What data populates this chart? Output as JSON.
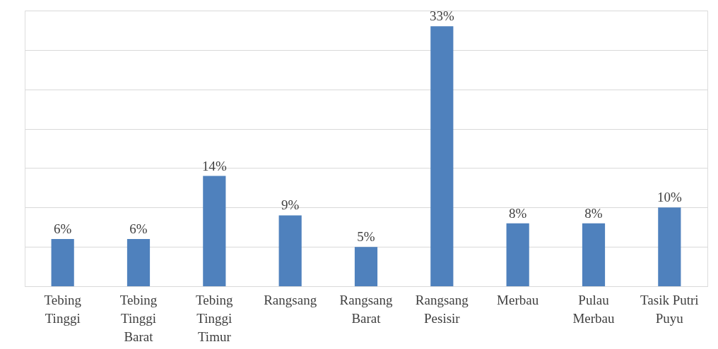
{
  "chart_data": {
    "type": "bar",
    "categories": [
      "Tebing Tinggi",
      "Tebing Tinggi Barat",
      "Tebing Tinggi Timur",
      "Rangsang",
      "Rangsang Barat",
      "Rangsang Pesisir",
      "Merbau",
      "Pulau Merbau",
      "Tasik Putri Puyu"
    ],
    "values": [
      6,
      6,
      14,
      9,
      5,
      33,
      8,
      8,
      10
    ],
    "value_labels": [
      "6%",
      "6%",
      "14%",
      "9%",
      "5%",
      "33%",
      "8%",
      "8%",
      "10%"
    ],
    "color": "#4f81bd",
    "ylim": [
      0,
      35
    ],
    "yticks": [
      {
        "value": 0,
        "label": null
      },
      {
        "value": 5,
        "label": null
      },
      {
        "value": 10,
        "label": null
      },
      {
        "value": 15,
        "label": null
      },
      {
        "value": 20,
        "label": null
      },
      {
        "value": 25,
        "label": null
      },
      {
        "value": 30,
        "label": null
      },
      {
        "value": 35,
        "label": null
      }
    ],
    "tick_labels": "x",
    "grid": "y"
  }
}
